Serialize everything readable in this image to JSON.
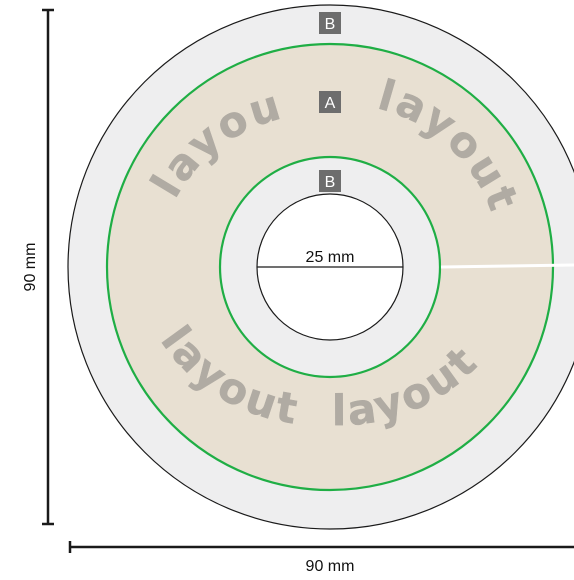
{
  "colors": {
    "zone_b_fill": "#eeeeef",
    "zone_a_fill": "#e8e0d2",
    "outline": "#1a1a1a",
    "green_line": "#1fae45",
    "watermark": "#a7a29b",
    "badge": "#6d6d6d"
  },
  "dimensions": {
    "height_label": "90 mm",
    "width_label": "90 mm",
    "hole_label": "25 mm"
  },
  "zones": {
    "outer_label": "B",
    "middle_label": "A",
    "inner_label": "B"
  },
  "watermark": {
    "word": "layout",
    "count": 4
  }
}
